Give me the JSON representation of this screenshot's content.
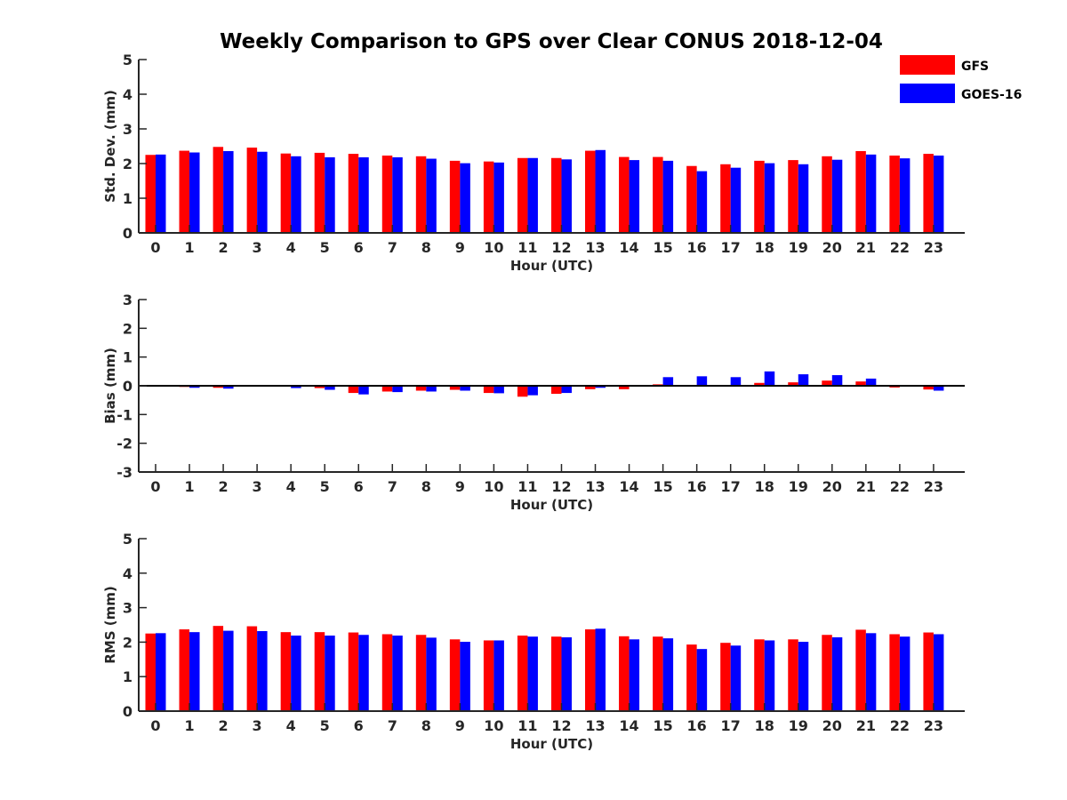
{
  "title": "Weekly Comparison to GPS over Clear CONUS 2018-12-04",
  "legend": {
    "placement": "top-right",
    "entries": [
      {
        "name": "GFS",
        "color": "#ff0000"
      },
      {
        "name": "GOES-16",
        "color": "#0000ff"
      }
    ]
  },
  "chart_data": [
    {
      "type": "bar",
      "xlabel": "Hour (UTC)",
      "ylabel": "Std. Dev. (mm)",
      "ylim": [
        0,
        5
      ],
      "yticks": [
        0,
        1,
        2,
        3,
        4,
        5
      ],
      "grid": false,
      "categories": [
        "0",
        "1",
        "2",
        "3",
        "4",
        "5",
        "6",
        "7",
        "8",
        "9",
        "10",
        "11",
        "12",
        "13",
        "14",
        "15",
        "16",
        "17",
        "18",
        "19",
        "20",
        "21",
        "22",
        "23"
      ],
      "series": [
        {
          "name": "GFS",
          "color": "#ff0000",
          "values": [
            2.25,
            2.37,
            2.48,
            2.46,
            2.29,
            2.31,
            2.28,
            2.23,
            2.21,
            2.08,
            2.06,
            2.16,
            2.16,
            2.37,
            2.19,
            2.19,
            1.93,
            1.98,
            2.08,
            2.1,
            2.21,
            2.36,
            2.23,
            2.28
          ]
        },
        {
          "name": "GOES-16",
          "color": "#0000ff",
          "values": [
            2.26,
            2.32,
            2.36,
            2.34,
            2.21,
            2.18,
            2.18,
            2.18,
            2.14,
            2.01,
            2.03,
            2.16,
            2.12,
            2.39,
            2.1,
            2.08,
            1.78,
            1.88,
            2.01,
            1.98,
            2.11,
            2.26,
            2.15,
            2.23
          ]
        }
      ]
    },
    {
      "type": "bar",
      "xlabel": "Hour (UTC)",
      "ylabel": "Bias (mm)",
      "ylim": [
        -3,
        3
      ],
      "yticks": [
        -3,
        -2,
        -1,
        0,
        1,
        2,
        3
      ],
      "grid": false,
      "categories": [
        "0",
        "1",
        "2",
        "3",
        "4",
        "5",
        "6",
        "7",
        "8",
        "9",
        "10",
        "11",
        "12",
        "13",
        "14",
        "15",
        "16",
        "17",
        "18",
        "19",
        "20",
        "21",
        "22",
        "23"
      ],
      "series": [
        {
          "name": "GFS",
          "color": "#ff0000",
          "values": [
            0.0,
            -0.04,
            -0.07,
            0.02,
            -0.03,
            -0.08,
            -0.25,
            -0.2,
            -0.17,
            -0.14,
            -0.25,
            -0.38,
            -0.28,
            -0.12,
            -0.12,
            0.05,
            0.02,
            0.0,
            0.1,
            0.12,
            0.18,
            0.15,
            -0.06,
            -0.13
          ]
        },
        {
          "name": "GOES-16",
          "color": "#0000ff",
          "values": [
            -0.03,
            -0.07,
            -0.1,
            0.02,
            -0.08,
            -0.14,
            -0.3,
            -0.22,
            -0.2,
            -0.17,
            -0.26,
            -0.33,
            -0.25,
            -0.07,
            -0.02,
            0.3,
            0.33,
            0.3,
            0.5,
            0.4,
            0.37,
            0.25,
            -0.03,
            -0.17
          ]
        }
      ]
    },
    {
      "type": "bar",
      "xlabel": "Hour (UTC)",
      "ylabel": "RMS (mm)",
      "ylim": [
        0,
        5
      ],
      "yticks": [
        0,
        1,
        2,
        3,
        4,
        5
      ],
      "grid": false,
      "categories": [
        "0",
        "1",
        "2",
        "3",
        "4",
        "5",
        "6",
        "7",
        "8",
        "9",
        "10",
        "11",
        "12",
        "13",
        "14",
        "15",
        "16",
        "17",
        "18",
        "19",
        "20",
        "21",
        "22",
        "23"
      ],
      "series": [
        {
          "name": "GFS",
          "color": "#ff0000",
          "values": [
            2.25,
            2.37,
            2.47,
            2.46,
            2.29,
            2.29,
            2.28,
            2.23,
            2.21,
            2.08,
            2.05,
            2.19,
            2.16,
            2.37,
            2.17,
            2.16,
            1.93,
            1.98,
            2.08,
            2.08,
            2.21,
            2.36,
            2.23,
            2.28
          ]
        },
        {
          "name": "GOES-16",
          "color": "#0000ff",
          "values": [
            2.26,
            2.29,
            2.33,
            2.32,
            2.19,
            2.19,
            2.21,
            2.19,
            2.13,
            2.01,
            2.05,
            2.16,
            2.14,
            2.39,
            2.08,
            2.11,
            1.8,
            1.9,
            2.05,
            2.01,
            2.14,
            2.26,
            2.16,
            2.23
          ]
        }
      ]
    }
  ]
}
